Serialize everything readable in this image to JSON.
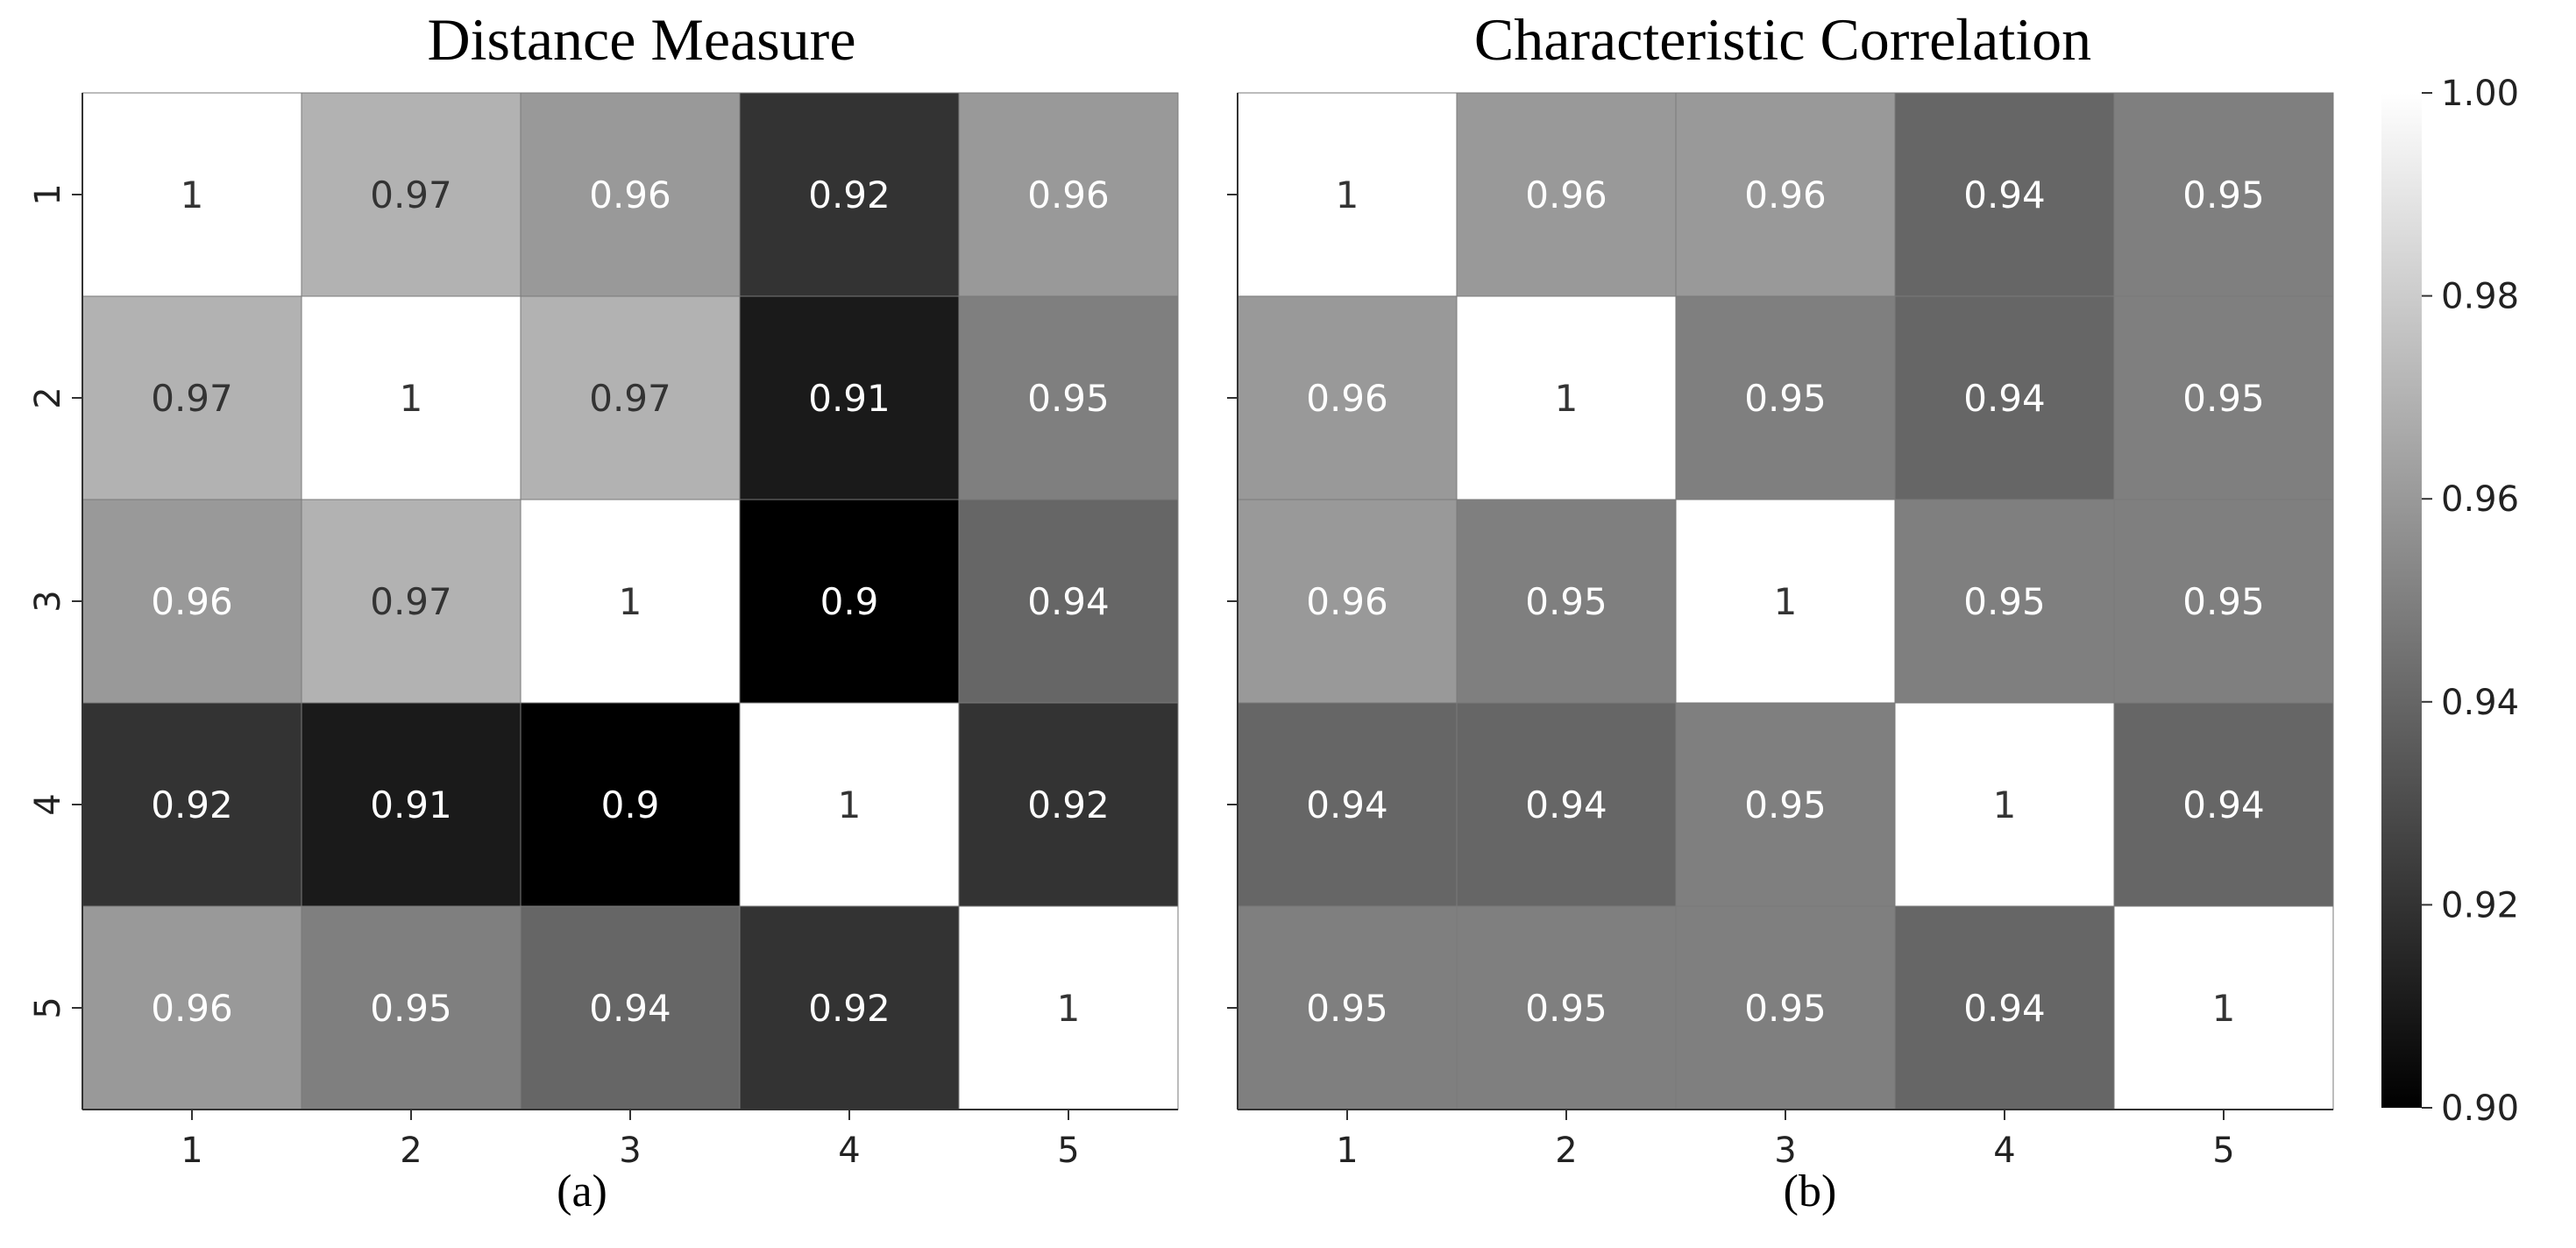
{
  "chart_data": [
    {
      "type": "heatmap",
      "title": "Distance Measure",
      "caption": "(a)",
      "x_tick_labels": [
        "1",
        "2",
        "3",
        "4",
        "5"
      ],
      "y_tick_labels": [
        "1",
        "2",
        "3",
        "4",
        "5"
      ],
      "values": [
        [
          1,
          0.97,
          0.96,
          0.92,
          0.96
        ],
        [
          0.97,
          1,
          0.97,
          0.91,
          0.95
        ],
        [
          0.96,
          0.97,
          1,
          0.9,
          0.94
        ],
        [
          0.92,
          0.91,
          0.9,
          1,
          0.92
        ],
        [
          0.96,
          0.95,
          0.94,
          0.92,
          1
        ]
      ],
      "labels": [
        [
          "1",
          "0.97",
          "0.96",
          "0.92",
          "0.96"
        ],
        [
          "0.97",
          "1",
          "0.97",
          "0.91",
          "0.95"
        ],
        [
          "0.96",
          "0.97",
          "1",
          "0.9",
          "0.94"
        ],
        [
          "0.92",
          "0.91",
          "0.9",
          "1",
          "0.92"
        ],
        [
          "0.96",
          "0.95",
          "0.94",
          "0.92",
          "1"
        ]
      ],
      "colormap": "gray",
      "vmin": 0.9,
      "vmax": 1.0
    },
    {
      "type": "heatmap",
      "title": "Characteristic Correlation",
      "caption": "(b)",
      "x_tick_labels": [
        "1",
        "2",
        "3",
        "4",
        "5"
      ],
      "y_tick_labels": [
        "",
        "",
        "",
        "",
        ""
      ],
      "values": [
        [
          1,
          0.96,
          0.96,
          0.94,
          0.95
        ],
        [
          0.96,
          1,
          0.95,
          0.94,
          0.95
        ],
        [
          0.96,
          0.95,
          1,
          0.95,
          0.95
        ],
        [
          0.94,
          0.94,
          0.95,
          1,
          0.94
        ],
        [
          0.95,
          0.95,
          0.95,
          0.94,
          1
        ]
      ],
      "labels": [
        [
          "1",
          "0.96",
          "0.96",
          "0.94",
          "0.95"
        ],
        [
          "0.96",
          "1",
          "0.95",
          "0.94",
          "0.95"
        ],
        [
          "0.96",
          "0.95",
          "1",
          "0.95",
          "0.95"
        ],
        [
          "0.94",
          "0.94",
          "0.95",
          "1",
          "0.94"
        ],
        [
          "0.95",
          "0.95",
          "0.95",
          "0.94",
          "1"
        ]
      ],
      "colormap": "gray",
      "vmin": 0.9,
      "vmax": 1.0
    }
  ],
  "colorbar": {
    "ticks": [
      "1.00",
      "0.98",
      "0.96",
      "0.94",
      "0.92",
      "0.90"
    ],
    "tick_values": [
      1.0,
      0.98,
      0.96,
      0.94,
      0.92,
      0.9
    ]
  }
}
